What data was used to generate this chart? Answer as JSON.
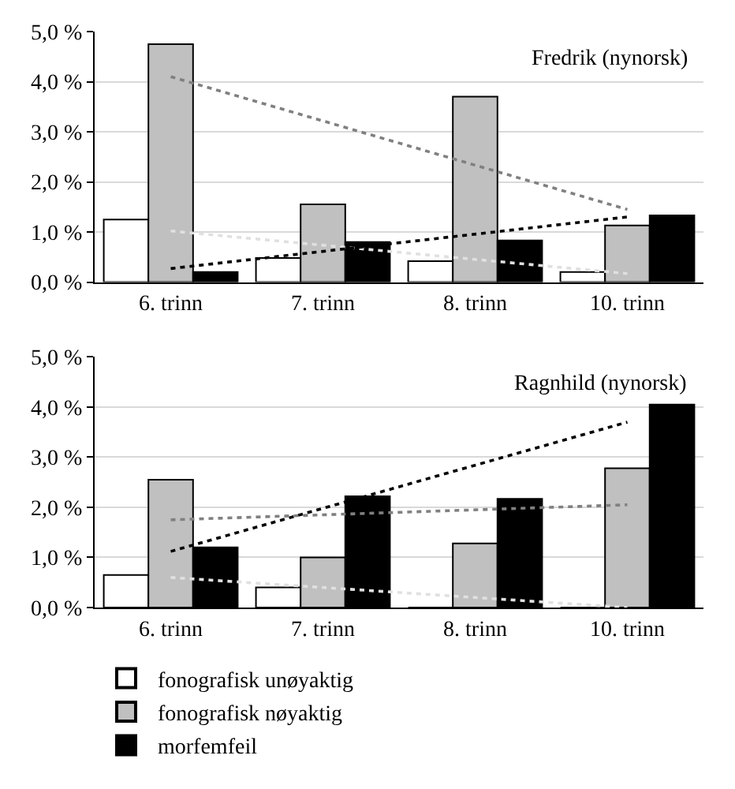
{
  "chart_data": [
    {
      "type": "bar",
      "title": "Fredrik (nynorsk)",
      "categories": [
        "6. trinn",
        "7. trinn",
        "8. trinn",
        "10. trinn"
      ],
      "series": [
        {
          "color": "#ffffff",
          "values": [
            1.25,
            0.48,
            0.42,
            0.2
          ]
        },
        {
          "color": "#c0c0c0",
          "values": [
            4.75,
            1.55,
            3.7,
            1.13
          ]
        },
        {
          "color": "#000000",
          "values": [
            0.2,
            0.8,
            0.83,
            1.33
          ]
        },
        {
          "type": "line",
          "color": "#e0e0e0",
          "x": [
            "6. trinn",
            "10. trinn"
          ],
          "values": [
            1.02,
            0.17
          ],
          "line_style": "dotted"
        },
        {
          "type": "line",
          "color": "#808080",
          "x": [
            "6. trinn",
            "10. trinn"
          ],
          "values": [
            4.1,
            1.45
          ],
          "line_style": "dotted"
        },
        {
          "type": "line",
          "color": "#000000",
          "x": [
            "6. trinn",
            "10. trinn"
          ],
          "values": [
            0.27,
            1.3
          ],
          "line_style": "dotted"
        }
      ],
      "ylim": [
        0,
        5
      ],
      "yticks": [
        {
          "value": 0,
          "label": "0,0 %"
        },
        {
          "value": 1,
          "label": "1,0 %"
        },
        {
          "value": 2,
          "label": "2,0 %"
        },
        {
          "value": 3,
          "label": "3,0 %"
        },
        {
          "value": 4,
          "label": "4,0 %"
        },
        {
          "value": 5,
          "label": "5,0 %"
        }
      ],
      "grid": "y",
      "legend": false
    },
    {
      "type": "bar",
      "title": "Ragnhild (nynorsk)",
      "categories": [
        "6. trinn",
        "7. trinn",
        "8. trinn",
        "10. trinn"
      ],
      "series": [
        {
          "name": "fonografisk unøyaktig",
          "color": "#ffffff",
          "values": [
            0.65,
            0.4,
            0.0,
            0.0
          ]
        },
        {
          "name": "fonografisk nøyaktig",
          "color": "#c0c0c0",
          "values": [
            2.55,
            1.0,
            1.28,
            2.78
          ]
        },
        {
          "name": "morfemfeil",
          "color": "#000000",
          "values": [
            1.2,
            2.22,
            2.17,
            4.05
          ]
        },
        {
          "type": "line",
          "color": "#e0e0e0",
          "x": [
            "6. trinn",
            "10. trinn"
          ],
          "values": [
            0.6,
            0.0
          ],
          "line_style": "dotted"
        },
        {
          "type": "line",
          "color": "#808080",
          "x": [
            "6. trinn",
            "10. trinn"
          ],
          "values": [
            1.75,
            2.05
          ],
          "line_style": "dotted"
        },
        {
          "type": "line",
          "color": "#000000",
          "x": [
            "6. trinn",
            "10. trinn"
          ],
          "values": [
            1.12,
            3.7
          ],
          "line_style": "dotted"
        }
      ],
      "ylim": [
        0,
        5
      ],
      "yticks": [
        {
          "value": 0,
          "label": "0,0 %"
        },
        {
          "value": 1,
          "label": "1,0 %"
        },
        {
          "value": 2,
          "label": "2,0 %"
        },
        {
          "value": 3,
          "label": "3,0 %"
        },
        {
          "value": 4,
          "label": "4,0 %"
        },
        {
          "value": 5,
          "label": "5,0 %"
        }
      ],
      "grid": "y",
      "legend": "bottom"
    }
  ]
}
